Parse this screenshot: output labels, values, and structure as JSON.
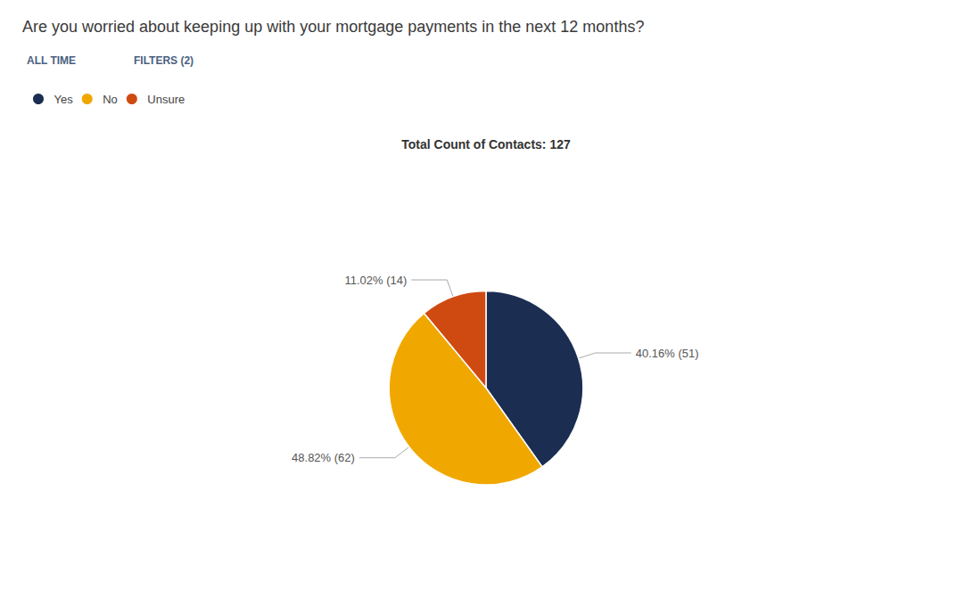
{
  "chart_data": {
    "type": "pie",
    "title": "Are you worried about keeping up with your mortgage payments in the next 12 months?",
    "subtitle": "Total Count of Contacts: 127",
    "annotations": [
      "ALL TIME",
      "FILTERS (2)"
    ],
    "categories": [
      "Yes",
      "No",
      "Unsure"
    ],
    "values": [
      40.16,
      48.82,
      11.02
    ],
    "value_labels": [
      "40.16% (51)",
      "48.82% (62)",
      "11.02% (14)"
    ],
    "colors": [
      "#1b2e52",
      "#f0a800",
      "#cf4a10"
    ],
    "data_labels": true,
    "legend": "upper left"
  }
}
